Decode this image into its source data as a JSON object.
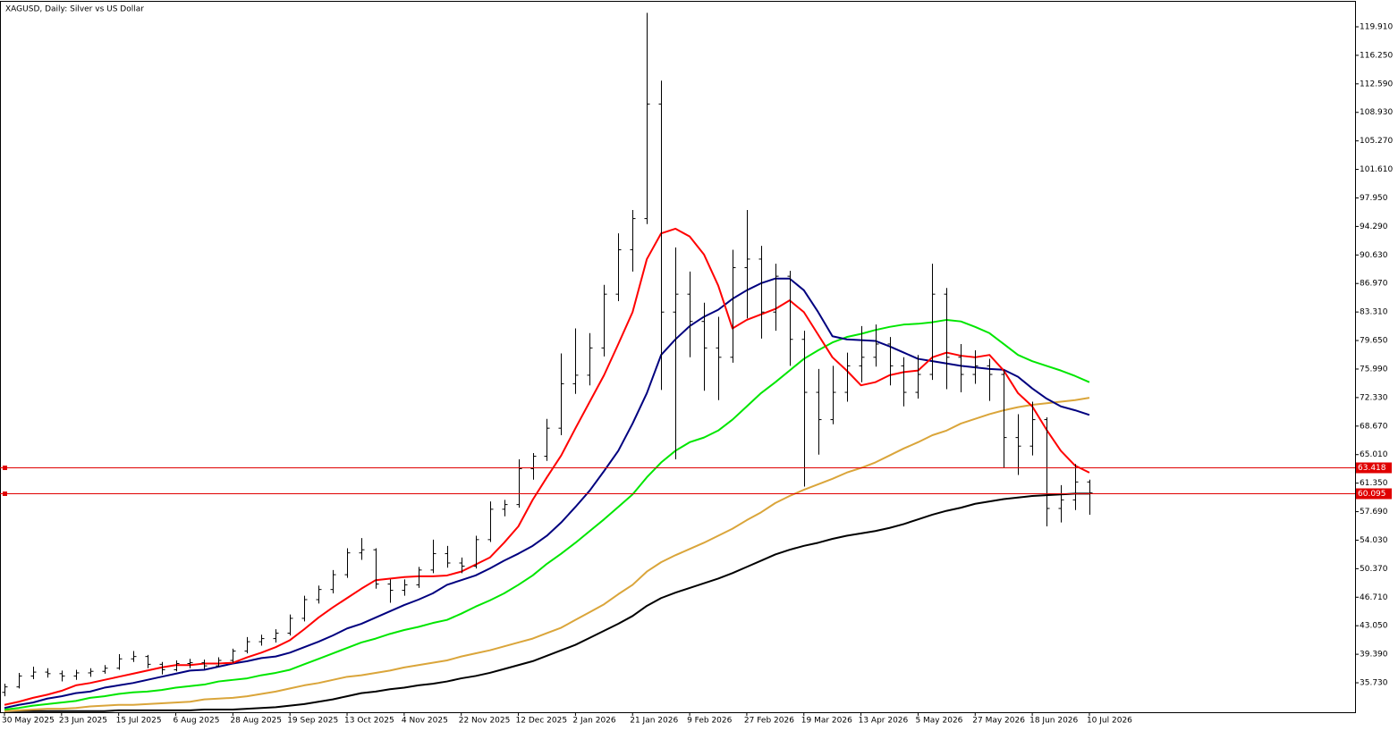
{
  "chart_data": {
    "type": "ohlc",
    "title": "XAGUSD, Daily:  Silver vs US Dollar",
    "categories": [
      "30 May 2025",
      null,
      null,
      null,
      "23 Jun 2025",
      null,
      null,
      null,
      "15 Jul 2025",
      null,
      null,
      null,
      "6 Aug 2025",
      null,
      null,
      null,
      "28 Aug 2025",
      null,
      null,
      null,
      "19 Sep 2025",
      null,
      null,
      null,
      "13 Oct 2025",
      null,
      null,
      null,
      "4 Nov 2025",
      null,
      null,
      null,
      "22 Nov 2025",
      null,
      null,
      null,
      "12 Dec 2025",
      null,
      null,
      null,
      "2 Jan 2026",
      null,
      null,
      null,
      "21 Jan 2026",
      null,
      null,
      null,
      "9 Feb 2026",
      null,
      null,
      null,
      "27 Feb 2026",
      null,
      null,
      null,
      "19 Mar 2026",
      null,
      null,
      null,
      "13 Apr 2026",
      null,
      null,
      null,
      "5 May 2026",
      null,
      null,
      null,
      "27 May 2026",
      null,
      null,
      null,
      "18 Jun 2026",
      null,
      null,
      null,
      "10 Jul 2026"
    ],
    "open": [
      34.5,
      35.2,
      36.6,
      37.1,
      36.9,
      36.6,
      37.0,
      37.2,
      37.6,
      38.8,
      39.1,
      38.1,
      37.4,
      38.2,
      38.3,
      37.9,
      38.6,
      39.8,
      41.0,
      41.4,
      42.1,
      44.0,
      46.4,
      47.7,
      49.6,
      52.4,
      52.8,
      48.4,
      47.6,
      48.3,
      50.2,
      52.3,
      51.1,
      50.7,
      54.1,
      58.0,
      58.6,
      63.2,
      64.8,
      68.4,
      74.1,
      75.2,
      78.7,
      85.6,
      91.3,
      95.3,
      110.0,
      83.3,
      85.6,
      82.1,
      78.7,
      77.5,
      89.0,
      90.1,
      83.3,
      87.9,
      79.8,
      73.0,
      69.5,
      73.0,
      76.4,
      77.5,
      79.2,
      76.4,
      73.0,
      75.3,
      85.6,
      77.5,
      75.3,
      76.4,
      75.3,
      67.2,
      66.1,
      69.5,
      58.1,
      59.2,
      61.5
    ],
    "high": [
      35.6,
      37.0,
      37.8,
      37.6,
      37.3,
      37.4,
      37.6,
      38.0,
      39.4,
      39.8,
      39.3,
      38.4,
      38.6,
      38.8,
      38.7,
      39.0,
      40.1,
      41.6,
      41.9,
      42.6,
      44.5,
      46.9,
      48.2,
      50.2,
      53.0,
      54.3,
      53.0,
      49.0,
      49.0,
      50.6,
      54.1,
      53.3,
      51.8,
      54.6,
      59.0,
      59.2,
      64.4,
      65.2,
      69.6,
      78.0,
      81.2,
      80.6,
      86.8,
      93.4,
      96.4,
      121.7,
      113.0,
      91.6,
      88.5,
      84.5,
      82.7,
      91.3,
      96.4,
      91.8,
      89.5,
      88.6,
      80.9,
      76.0,
      76.4,
      78.1,
      81.5,
      81.7,
      80.1,
      77.5,
      77.8,
      89.5,
      86.4,
      79.2,
      78.4,
      77.3,
      75.9,
      70.2,
      71.8,
      69.8,
      61.1,
      63.8,
      61.8
    ],
    "low": [
      34.0,
      35.0,
      36.2,
      36.4,
      35.9,
      36.1,
      36.5,
      36.9,
      37.4,
      38.4,
      37.6,
      36.8,
      37.2,
      37.6,
      37.5,
      37.8,
      38.3,
      39.5,
      40.5,
      40.9,
      41.8,
      43.6,
      45.9,
      47.2,
      49.2,
      51.5,
      47.8,
      46.0,
      46.9,
      47.9,
      49.8,
      50.5,
      49.8,
      50.4,
      53.8,
      57.1,
      58.2,
      61.8,
      64.2,
      67.5,
      72.8,
      73.9,
      77.6,
      84.7,
      88.5,
      94.6,
      73.3,
      64.4,
      77.5,
      73.2,
      72.0,
      76.8,
      82.5,
      79.9,
      80.9,
      76.4,
      60.9,
      65.0,
      68.9,
      71.8,
      74.3,
      76.3,
      73.9,
      71.2,
      72.2,
      74.6,
      73.4,
      73.0,
      74.1,
      71.9,
      63.3,
      62.4,
      64.9,
      55.8,
      56.3,
      57.9,
      57.3
    ],
    "close": [
      35.2,
      36.6,
      37.1,
      36.9,
      36.6,
      37.0,
      37.2,
      37.6,
      38.8,
      39.1,
      38.1,
      37.4,
      38.2,
      38.3,
      37.9,
      38.6,
      39.8,
      41.0,
      41.4,
      42.1,
      44.0,
      46.4,
      47.7,
      49.6,
      52.4,
      52.8,
      48.4,
      47.6,
      48.3,
      50.2,
      52.3,
      51.1,
      50.7,
      54.1,
      58.0,
      58.6,
      63.2,
      64.8,
      68.4,
      74.1,
      75.2,
      78.7,
      85.6,
      91.3,
      95.3,
      110.0,
      83.3,
      85.6,
      82.1,
      78.7,
      77.5,
      89.0,
      90.1,
      83.3,
      87.9,
      79.8,
      73.0,
      69.5,
      73.0,
      76.4,
      77.5,
      79.2,
      76.4,
      73.0,
      75.3,
      85.6,
      77.5,
      75.3,
      76.4,
      75.3,
      67.2,
      66.1,
      69.5,
      58.1,
      59.2,
      61.5,
      60.095
    ],
    "bar_color": "#000000",
    "series": [
      {
        "color": "#000000",
        "values": [
          32.1,
          32.1,
          32.1,
          32.1,
          32.1,
          32.1,
          32.1,
          32.1,
          32.2,
          32.2,
          32.2,
          32.2,
          32.2,
          32.2,
          32.3,
          32.3,
          32.3,
          32.4,
          32.5,
          32.6,
          32.8,
          33.0,
          33.3,
          33.6,
          34.0,
          34.4,
          34.6,
          34.9,
          35.1,
          35.4,
          35.6,
          35.9,
          36.3,
          36.6,
          37.0,
          37.5,
          38.0,
          38.5,
          39.2,
          39.9,
          40.6,
          41.5,
          42.4,
          43.3,
          44.3,
          45.6,
          46.6,
          47.3,
          47.9,
          48.5,
          49.1,
          49.8,
          50.6,
          51.4,
          52.2,
          52.8,
          53.3,
          53.7,
          54.2,
          54.6,
          54.9,
          55.2,
          55.6,
          56.1,
          56.7,
          57.3,
          57.8,
          58.2,
          58.7,
          59.0,
          59.3,
          59.5,
          59.7,
          59.8,
          59.9,
          60.0,
          60.0
        ]
      },
      {
        "color": "#daa53a",
        "values": [
          32.1,
          32.2,
          32.3,
          32.4,
          32.4,
          32.5,
          32.7,
          32.8,
          32.9,
          32.9,
          33.0,
          33.1,
          33.2,
          33.3,
          33.6,
          33.7,
          33.8,
          34.0,
          34.3,
          34.6,
          35.0,
          35.4,
          35.7,
          36.1,
          36.5,
          36.7,
          37.0,
          37.3,
          37.7,
          38.0,
          38.3,
          38.6,
          39.1,
          39.5,
          39.9,
          40.4,
          40.9,
          41.4,
          42.1,
          42.8,
          43.8,
          44.8,
          45.8,
          47.1,
          48.3,
          50.0,
          51.2,
          52.1,
          52.9,
          53.7,
          54.6,
          55.5,
          56.6,
          57.6,
          58.8,
          59.7,
          60.5,
          61.2,
          61.9,
          62.7,
          63.3,
          64.0,
          64.9,
          65.8,
          66.6,
          67.5,
          68.1,
          69.0,
          69.6,
          70.2,
          70.7,
          71.1,
          71.4,
          71.6,
          71.8,
          72.0,
          72.3
        ]
      },
      {
        "color": "#00e600",
        "values": [
          32.3,
          32.5,
          32.8,
          33.0,
          33.2,
          33.4,
          33.8,
          34.0,
          34.3,
          34.5,
          34.6,
          34.8,
          35.1,
          35.3,
          35.5,
          35.9,
          36.1,
          36.3,
          36.7,
          37.0,
          37.4,
          38.1,
          38.8,
          39.5,
          40.2,
          40.9,
          41.4,
          42.0,
          42.5,
          42.9,
          43.4,
          43.8,
          44.6,
          45.5,
          46.3,
          47.2,
          48.3,
          49.5,
          51.0,
          52.3,
          53.7,
          55.2,
          56.7,
          58.3,
          59.9,
          62.1,
          64.0,
          65.5,
          66.6,
          67.2,
          68.1,
          69.5,
          71.2,
          72.9,
          74.3,
          75.8,
          77.3,
          78.4,
          79.4,
          80.1,
          80.5,
          81.0,
          81.4,
          81.7,
          81.8,
          82.0,
          82.3,
          82.1,
          81.4,
          80.6,
          79.2,
          77.8,
          77.0,
          76.4,
          75.8,
          75.1,
          74.3
        ]
      },
      {
        "color": "#00007f",
        "values": [
          32.5,
          32.9,
          33.2,
          33.7,
          34.0,
          34.4,
          34.6,
          35.1,
          35.4,
          35.7,
          36.1,
          36.5,
          36.9,
          37.3,
          37.4,
          37.8,
          38.2,
          38.5,
          38.9,
          39.1,
          39.6,
          40.3,
          41.0,
          41.8,
          42.7,
          43.3,
          44.1,
          44.9,
          45.7,
          46.4,
          47.2,
          48.3,
          48.9,
          49.5,
          50.4,
          51.4,
          52.3,
          53.3,
          54.6,
          56.3,
          58.3,
          60.4,
          62.9,
          65.5,
          69.0,
          72.9,
          77.8,
          79.8,
          81.5,
          82.7,
          83.6,
          85.0,
          86.1,
          87.0,
          87.6,
          87.6,
          86.1,
          83.3,
          80.2,
          79.8,
          79.7,
          79.6,
          78.9,
          78.1,
          77.3,
          77.0,
          76.7,
          76.4,
          76.2,
          76.0,
          75.9,
          75.0,
          73.5,
          72.2,
          71.2,
          70.7,
          70.1
        ]
      },
      {
        "color": "#ff0000",
        "values": [
          32.9,
          33.3,
          33.8,
          34.2,
          34.7,
          35.4,
          35.7,
          36.1,
          36.5,
          36.9,
          37.3,
          37.7,
          38.0,
          38.0,
          38.2,
          38.2,
          38.3,
          39.0,
          39.6,
          40.3,
          41.2,
          42.6,
          44.1,
          45.4,
          46.6,
          47.8,
          48.9,
          49.1,
          49.3,
          49.4,
          49.4,
          49.5,
          50.0,
          50.9,
          51.8,
          53.7,
          55.8,
          59.2,
          62.1,
          64.9,
          68.4,
          71.8,
          75.2,
          79.2,
          83.3,
          90.1,
          93.4,
          94.0,
          93.0,
          90.7,
          86.7,
          81.2,
          82.3,
          83.0,
          83.7,
          84.8,
          83.3,
          80.4,
          77.5,
          75.8,
          73.9,
          74.3,
          75.2,
          75.6,
          75.8,
          77.5,
          78.1,
          77.7,
          77.5,
          77.8,
          75.8,
          72.9,
          71.2,
          68.2,
          65.5,
          63.6,
          62.7
        ]
      }
    ],
    "levels": [
      {
        "value": 63.418,
        "label": "63.418"
      },
      {
        "value": 60.095,
        "label": "60.095"
      }
    ],
    "level_color": "#e00000",
    "ylim": [
      31.95,
      123.12
    ],
    "yticks": [
      {
        "value": 35.73,
        "label": "35.730"
      },
      {
        "value": 39.39,
        "label": "39.390"
      },
      {
        "value": 43.05,
        "label": "43.050"
      },
      {
        "value": 46.71,
        "label": "46.710"
      },
      {
        "value": 50.37,
        "label": "50.370"
      },
      {
        "value": 54.03,
        "label": "54.030"
      },
      {
        "value": 57.69,
        "label": "57.690"
      },
      {
        "value": 61.35,
        "label": "61.350"
      },
      {
        "value": 65.01,
        "label": "65.010"
      },
      {
        "value": 68.67,
        "label": "68.670"
      },
      {
        "value": 72.33,
        "label": "72.330"
      },
      {
        "value": 75.99,
        "label": "75.990"
      },
      {
        "value": 79.65,
        "label": "79.650"
      },
      {
        "value": 83.31,
        "label": "83.310"
      },
      {
        "value": 86.97,
        "label": "86.970"
      },
      {
        "value": 90.63,
        "label": "90.630"
      },
      {
        "value": 94.29,
        "label": "94.290"
      },
      {
        "value": 97.95,
        "label": "97.950"
      },
      {
        "value": 101.61,
        "label": "101.610"
      },
      {
        "value": 105.27,
        "label": "105.270"
      },
      {
        "value": 108.93,
        "label": "108.930"
      },
      {
        "value": 112.59,
        "label": "112.590"
      },
      {
        "value": 116.25,
        "label": "116.250"
      },
      {
        "value": 119.91,
        "label": "119.910"
      }
    ],
    "grid": false
  }
}
